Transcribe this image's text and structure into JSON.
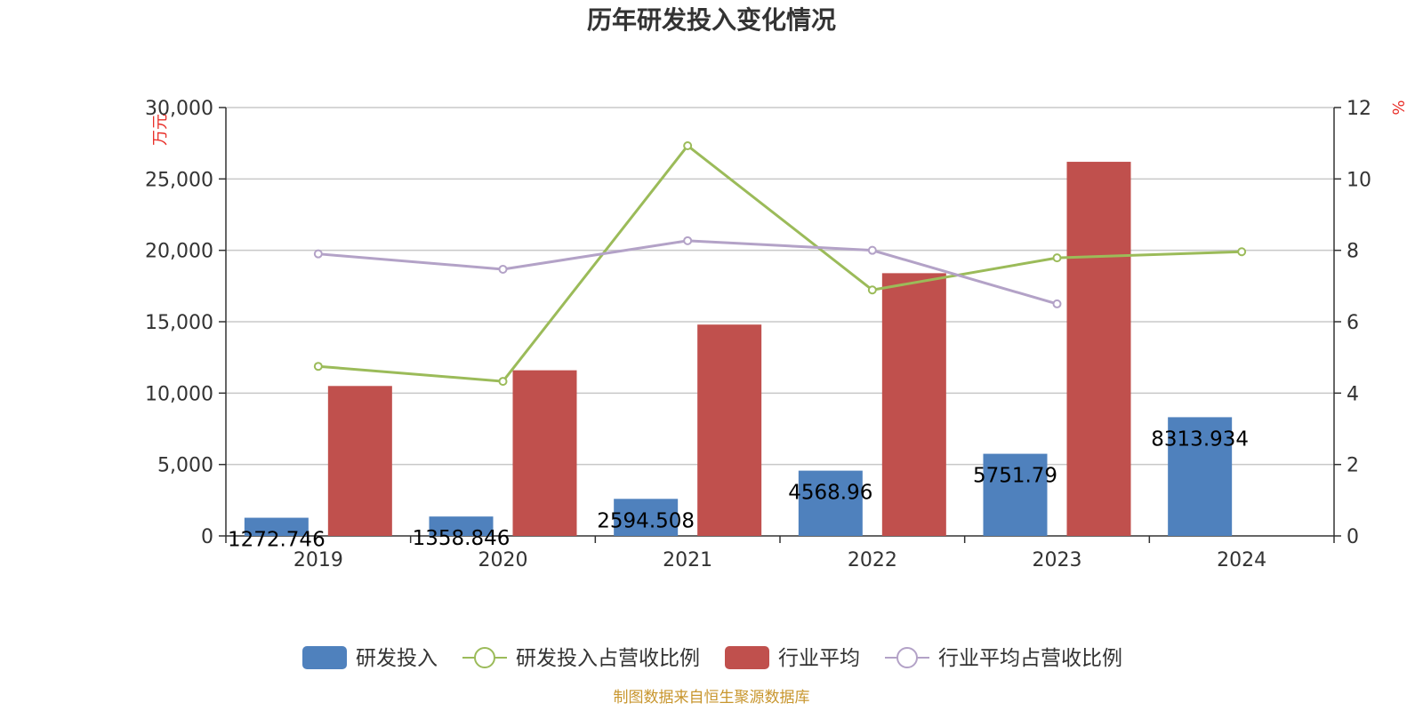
{
  "chart_data": {
    "type": "bar",
    "title": "历年研发投入变化情况",
    "categories": [
      "2019",
      "2020",
      "2021",
      "2022",
      "2023",
      "2024"
    ],
    "y_left": {
      "unit": "万元",
      "ylim": [
        0,
        30000
      ],
      "ticks": [
        "0",
        "5,000",
        "10,000",
        "15,000",
        "20,000",
        "25,000",
        "30,000"
      ]
    },
    "y_right": {
      "unit": "%",
      "ylim": [
        0,
        12
      ],
      "ticks": [
        "0",
        "2",
        "4",
        "6",
        "8",
        "10",
        "12"
      ]
    },
    "grid": true,
    "legend_position": "bottom",
    "series": [
      {
        "name": "研发投入",
        "kind": "bar",
        "axis": "left",
        "color": "#4f81bd",
        "values": [
          1272.746,
          1358.846,
          2594.508,
          4568.96,
          5751.79,
          8313.934
        ],
        "labels": [
          "1272.746",
          "1358.846",
          "2594.508",
          "4568.96",
          "5751.79",
          "8313.934"
        ]
      },
      {
        "name": "研发投入占营收比例",
        "kind": "line",
        "axis": "right",
        "color": "#9bbb59",
        "values": [
          4.75,
          4.33,
          10.93,
          6.89,
          7.79,
          7.96
        ]
      },
      {
        "name": "行业平均",
        "kind": "bar",
        "axis": "left",
        "color": "#c0504d",
        "values": [
          10500,
          11600,
          14800,
          18400,
          26200,
          null
        ]
      },
      {
        "name": "行业平均占营收比例",
        "kind": "line",
        "axis": "right",
        "color": "#b3a2c7",
        "values": [
          7.9,
          7.47,
          8.27,
          8.0,
          6.5,
          null
        ]
      }
    ],
    "source": "制图数据来自恒生聚源数据库"
  }
}
